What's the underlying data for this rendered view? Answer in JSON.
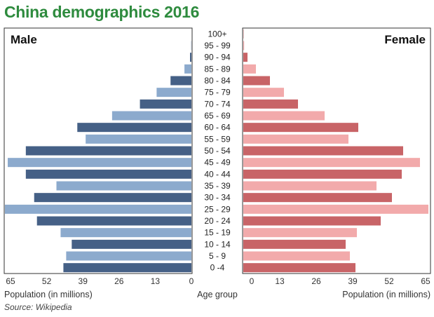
{
  "title": "China demographics 2016",
  "source": "Source: Wikipedia",
  "colors": {
    "title": "#2e8b3e",
    "male_dark": "#456086",
    "male_light": "#8caacd",
    "female_dark": "#c86467",
    "female_light": "#f2aaab"
  },
  "chart_data": {
    "type": "bar",
    "subtype": "population-pyramid",
    "title": "China demographics 2016",
    "xlabel_left": "Population (in millions)",
    "xlabel_right": "Population (in millions)",
    "center_label": "Age group",
    "left_panel_label": "Male",
    "right_panel_label": "Female",
    "xlim": [
      0,
      65
    ],
    "ticks": [
      0,
      13,
      26,
      39,
      52,
      65
    ],
    "categories": [
      "100+",
      "95 - 99",
      "90 - 94",
      "85 - 89",
      "80 - 84",
      "75 - 79",
      "70 - 74",
      "65 - 69",
      "60 - 64",
      "55 - 59",
      "50 - 54",
      "45 - 49",
      "40 - 44",
      "35 - 39",
      "30 - 34",
      "25 - 29",
      "20 - 24",
      "15 - 19",
      "10 - 14",
      "5 - 9",
      "0 -4"
    ],
    "series": [
      {
        "name": "Male",
        "values": [
          0,
          0.1,
          0.5,
          2.5,
          7.5,
          12.5,
          18.5,
          28.5,
          41,
          38,
          59.5,
          66,
          59.5,
          48.5,
          56.5,
          68,
          55.5,
          47,
          43,
          45,
          46
        ]
      },
      {
        "name": "Female",
        "values": [
          0.1,
          0.3,
          1.5,
          4.5,
          9.5,
          14.5,
          19.5,
          29,
          41,
          37.5,
          57,
          63,
          56.5,
          47.5,
          53,
          66,
          49,
          40.5,
          36.5,
          38,
          40
        ]
      }
    ],
    "grid": false,
    "legend": "none"
  }
}
